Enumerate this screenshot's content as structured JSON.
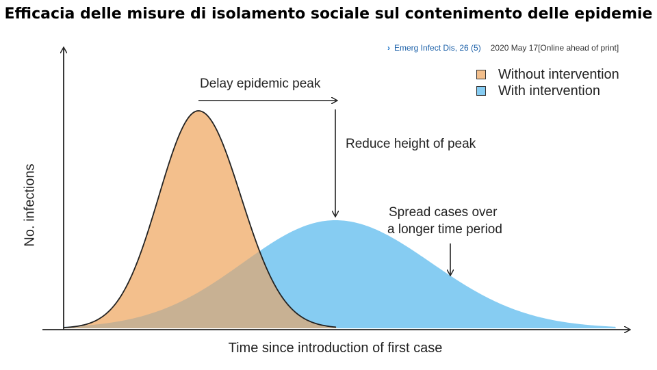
{
  "title": "Efficacia delle misure di isolamento sociale sul contenimento delle epidemie",
  "citation": {
    "journal": "Emerg Infect Dis, 26 (5)",
    "date": "2020 May 17[Online ahead of print]"
  },
  "figure": {
    "y_axis_label": "No. infections",
    "x_axis_label": "Time since introduction of first case",
    "legend": [
      {
        "label": "Without intervention",
        "color": "#f3bf8c"
      },
      {
        "label": "With intervention",
        "color": "#86ccf2"
      }
    ],
    "annotations": {
      "delay": "Delay epidemic peak",
      "reduce": "Reduce height of peak",
      "spread_line1": "Spread cases over",
      "spread_line2": "a longer time period"
    },
    "colors": {
      "without": "#f3bf8c",
      "with": "#86ccf2",
      "overlap": "#c8b193",
      "axis": "#222222"
    }
  }
}
